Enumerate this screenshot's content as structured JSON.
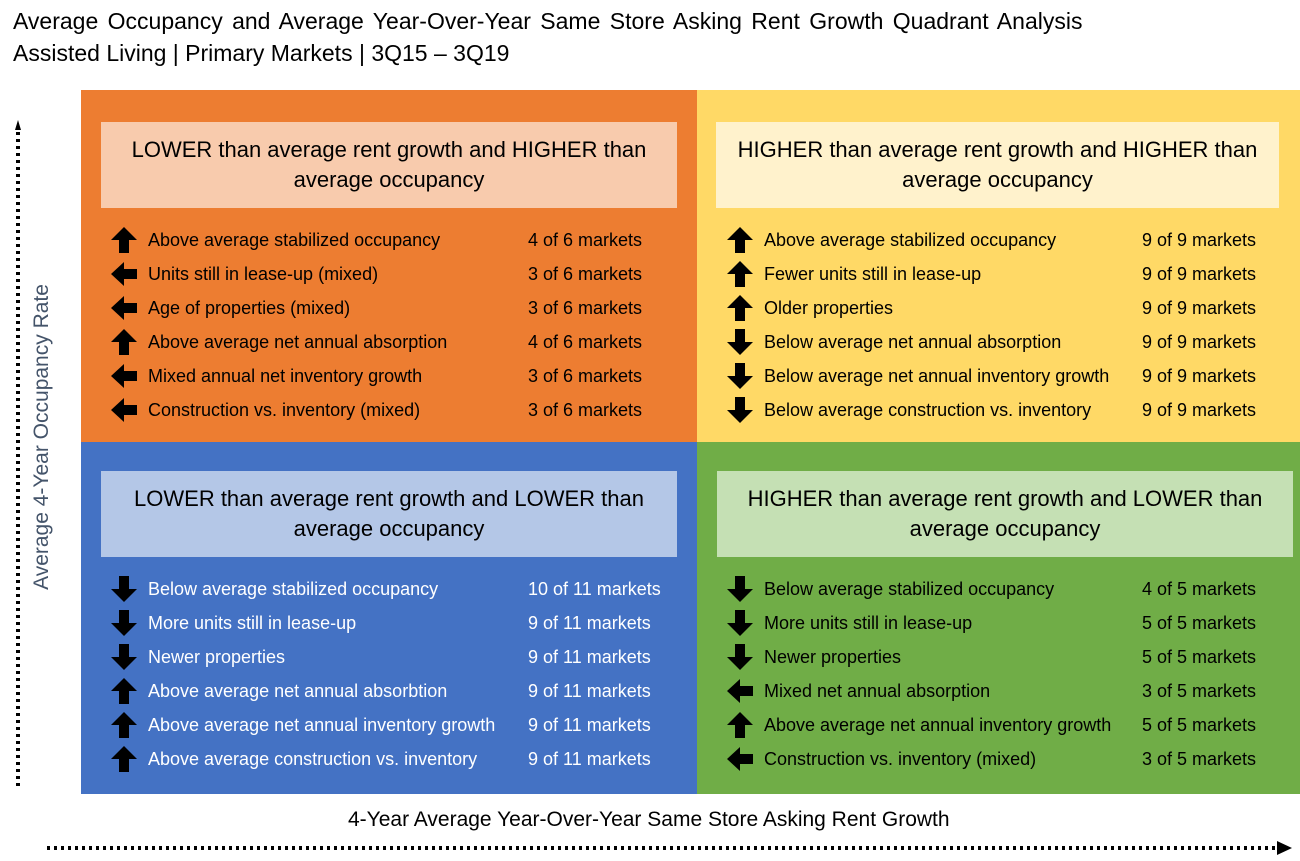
{
  "title": {
    "line1": "Average Occupancy and Average Year-Over-Year Same Store Asking Rent Growth Quadrant Analysis",
    "line2": "Assisted Living | Primary Markets | 3Q15 – 3Q19"
  },
  "axes": {
    "y_label": "Average 4-Year Occupancy Rate",
    "x_label": "4-Year Average Year-Over-Year Same Store Asking Rent Growth"
  },
  "colors": {
    "top_left": "#ed7d31",
    "top_right": "#ffd966",
    "bottom_left": "#4472c4",
    "bottom_right": "#70ad47"
  },
  "quadrants": {
    "top_left": {
      "header": "LOWER than average rent growth and HIGHER than average occupancy",
      "rows": [
        {
          "arrow": "up-arrow-icon",
          "label": "Above average stabilized occupancy",
          "count": "4 of 6 markets"
        },
        {
          "arrow": "left-arrow-icon",
          "label": "Units still in lease-up (mixed)",
          "count": "3 of 6 markets"
        },
        {
          "arrow": "left-arrow-icon",
          "label": "Age of properties (mixed)",
          "count": "3 of 6 markets"
        },
        {
          "arrow": "up-arrow-icon",
          "label": "Above average net annual absorption",
          "count": "4 of 6 markets"
        },
        {
          "arrow": "left-arrow-icon",
          "label": "Mixed annual net inventory growth",
          "count": "3 of 6 markets"
        },
        {
          "arrow": "left-arrow-icon",
          "label": "Construction vs. inventory (mixed)",
          "count": "3 of 6 markets"
        }
      ]
    },
    "top_right": {
      "header": "HIGHER than average rent growth and HIGHER than average occupancy",
      "rows": [
        {
          "arrow": "up-arrow-icon",
          "label": "Above average stabilized occupancy",
          "count": "9 of 9 markets"
        },
        {
          "arrow": "up-arrow-icon",
          "label": "Fewer units still in lease-up",
          "count": "9 of 9 markets"
        },
        {
          "arrow": "up-arrow-icon",
          "label": "Older properties",
          "count": "9 of 9 markets"
        },
        {
          "arrow": "down-arrow-icon",
          "label": "Below average net annual absorption",
          "count": "9 of 9 markets"
        },
        {
          "arrow": "down-arrow-icon",
          "label": "Below average net annual inventory growth",
          "count": "9 of 9 markets"
        },
        {
          "arrow": "down-arrow-icon",
          "label": "Below average construction vs. inventory",
          "count": "9 of 9 markets"
        }
      ]
    },
    "bottom_left": {
      "header": "LOWER than average rent growth and LOWER than average occupancy",
      "rows": [
        {
          "arrow": "down-arrow-icon",
          "label": "Below average stabilized occupancy",
          "count": "10 of 11 markets"
        },
        {
          "arrow": "down-arrow-icon",
          "label": "More units still in lease-up",
          "count": "9 of 11 markets"
        },
        {
          "arrow": "down-arrow-icon",
          "label": "Newer properties",
          "count": "9 of 11 markets"
        },
        {
          "arrow": "up-arrow-icon",
          "label": "Above average net annual absorbtion",
          "count": "9 of 11 markets"
        },
        {
          "arrow": "up-arrow-icon",
          "label": "Above average net annual inventory growth",
          "count": "9 of 11 markets"
        },
        {
          "arrow": "up-arrow-icon",
          "label": "Above average construction vs. inventory",
          "count": "9 of 11 markets"
        }
      ]
    },
    "bottom_right": {
      "header": "HIGHER than average rent growth and LOWER than average occupancy",
      "rows": [
        {
          "arrow": "down-arrow-icon",
          "label": "Below average stabilized occupancy",
          "count": "4 of 5 markets"
        },
        {
          "arrow": "down-arrow-icon",
          "label": "More units still in lease-up",
          "count": "5 of 5 markets"
        },
        {
          "arrow": "down-arrow-icon",
          "label": "Newer properties",
          "count": "5 of 5 markets"
        },
        {
          "arrow": "left-arrow-icon",
          "label": "Mixed net annual absorption",
          "count": "3 of 5 markets"
        },
        {
          "arrow": "up-arrow-icon",
          "label": "Above average net annual inventory growth",
          "count": "5 of 5 markets"
        },
        {
          "arrow": "left-arrow-icon",
          "label": "Construction vs. inventory (mixed)",
          "count": "3 of 5 markets"
        }
      ]
    }
  }
}
